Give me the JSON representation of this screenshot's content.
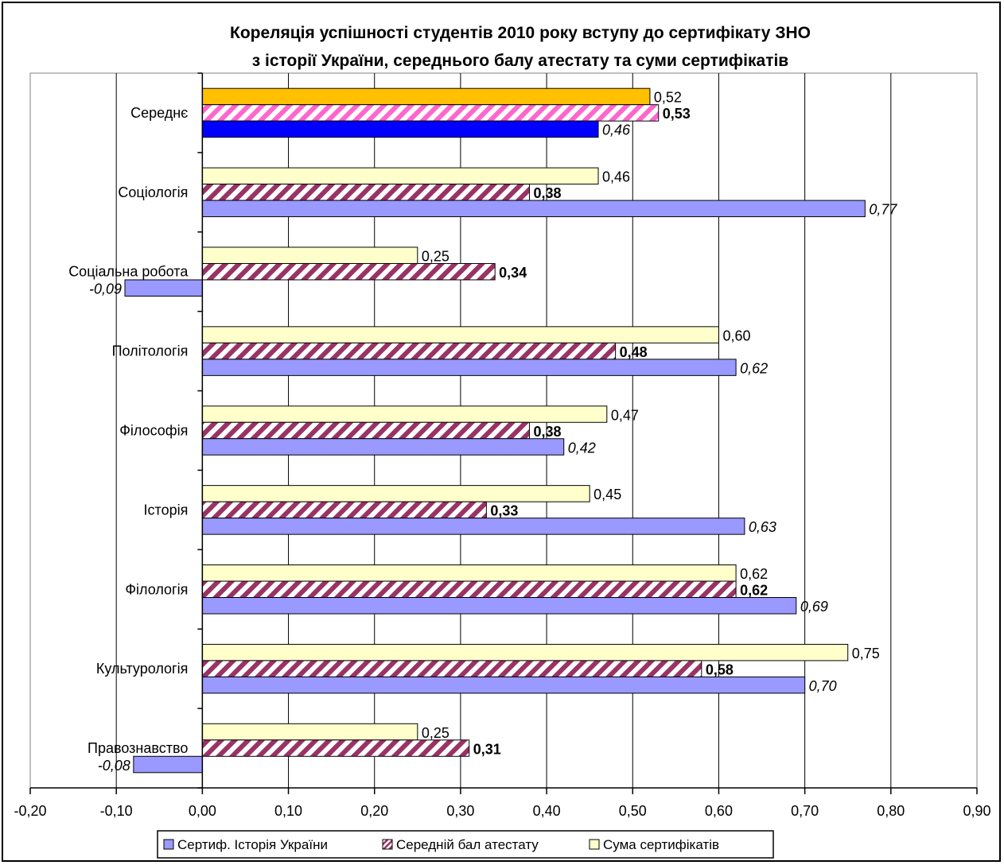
{
  "chart_data": {
    "type": "bar",
    "orientation": "horizontal",
    "title": [
      "Кореляція успішності студентів 2010 року вступу до сертифікату ЗНО",
      "з історії України, середнього балу атестату та суми сертифікатів"
    ],
    "categories": [
      "Середнє",
      "Соціологія",
      "Соціальна робота",
      "Політологія",
      "Філософія",
      "Історія",
      "Філологія",
      "Культурологія",
      "Правознавство"
    ],
    "series": [
      {
        "name": "Сума сертифікатів",
        "values": [
          0.52,
          0.46,
          0.25,
          0.6,
          0.47,
          0.45,
          0.62,
          0.75,
          0.25
        ],
        "labels": [
          "0,52",
          "0,46",
          "0,25",
          "0,60",
          "0,47",
          "0,45",
          "0,62",
          "0,75",
          "0,25"
        ],
        "color": "#FFFFCC",
        "first_color": "#FFC000",
        "label_style": "normal"
      },
      {
        "name": "Середній бал атестату",
        "values": [
          0.53,
          0.38,
          0.34,
          0.48,
          0.38,
          0.33,
          0.62,
          0.58,
          0.31
        ],
        "labels": [
          "0,53",
          "0,38",
          "0,34",
          "0,48",
          "0,38",
          "0,33",
          "0,62",
          "0,58",
          "0,31"
        ],
        "color": "#993366",
        "first_color": "#FF66CC",
        "label_style": "bold"
      },
      {
        "name": "Сертиф. Історія України",
        "values": [
          0.46,
          0.77,
          -0.09,
          0.62,
          0.42,
          0.63,
          0.69,
          0.7,
          -0.08
        ],
        "labels": [
          "0,46",
          "0,77",
          "-0,09",
          "0,62",
          "0,42",
          "0,63",
          "0,69",
          "0,70",
          "-0,08"
        ],
        "color": "#9999FF",
        "first_color": "#0000FF",
        "label_style": "italic"
      }
    ],
    "legend_order": [
      "Сертиф. Історія України",
      "Середній бал атестату",
      "Сума сертифікатів"
    ],
    "xlim": [
      -0.2,
      0.9
    ],
    "xticks": [
      -0.2,
      -0.1,
      0.0,
      0.1,
      0.2,
      0.3,
      0.4,
      0.5,
      0.6,
      0.7,
      0.8,
      0.9
    ],
    "xtick_labels": [
      "-0,20",
      "-0,10",
      "0,00",
      "0,10",
      "0,20",
      "0,30",
      "0,40",
      "0,50",
      "0,60",
      "0,70",
      "0,80",
      "0,90"
    ],
    "grid": true,
    "legend_position": "bottom",
    "xlabel": "",
    "ylabel": ""
  }
}
